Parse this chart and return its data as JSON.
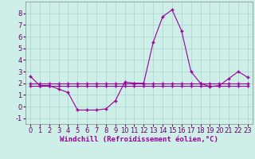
{
  "xlabel": "Windchill (Refroidissement éolien,°C)",
  "background_color": "#ceeee8",
  "grid_color": "#aad4cc",
  "line_color": "#990099",
  "x": [
    0,
    1,
    2,
    3,
    4,
    5,
    6,
    7,
    8,
    9,
    10,
    11,
    12,
    13,
    14,
    15,
    16,
    17,
    18,
    19,
    20,
    21,
    22,
    23
  ],
  "y_main": [
    2.6,
    1.8,
    1.8,
    1.5,
    1.2,
    -0.3,
    -0.3,
    -0.3,
    -0.2,
    0.5,
    2.1,
    2.0,
    2.0,
    5.5,
    7.7,
    8.3,
    6.5,
    3.0,
    2.0,
    1.7,
    1.8,
    2.4,
    3.0,
    2.5
  ],
  "y_ref1": [
    2.0,
    2.0,
    2.0,
    2.0,
    2.0,
    2.0,
    2.0,
    2.0,
    2.0,
    2.0,
    2.0,
    2.0,
    2.0,
    2.0,
    2.0,
    2.0,
    2.0,
    2.0,
    2.0,
    2.0,
    2.0,
    2.0,
    2.0,
    2.0
  ],
  "y_ref2": [
    1.8,
    1.8,
    1.8,
    1.8,
    1.8,
    1.8,
    1.8,
    1.8,
    1.8,
    1.8,
    1.8,
    1.8,
    1.8,
    1.8,
    1.8,
    1.8,
    1.8,
    1.8,
    1.8,
    1.8,
    1.8,
    1.8,
    1.8,
    1.8
  ],
  "ylim": [
    -1.5,
    9.0
  ],
  "xlim": [
    -0.5,
    23.5
  ],
  "yticks": [
    -1,
    0,
    1,
    2,
    3,
    4,
    5,
    6,
    7,
    8
  ],
  "xticks": [
    0,
    1,
    2,
    3,
    4,
    5,
    6,
    7,
    8,
    9,
    10,
    11,
    12,
    13,
    14,
    15,
    16,
    17,
    18,
    19,
    20,
    21,
    22,
    23
  ],
  "marker": "+",
  "markersize": 3,
  "linewidth": 0.8,
  "xlabel_fontsize": 6.5,
  "tick_fontsize": 6.0
}
